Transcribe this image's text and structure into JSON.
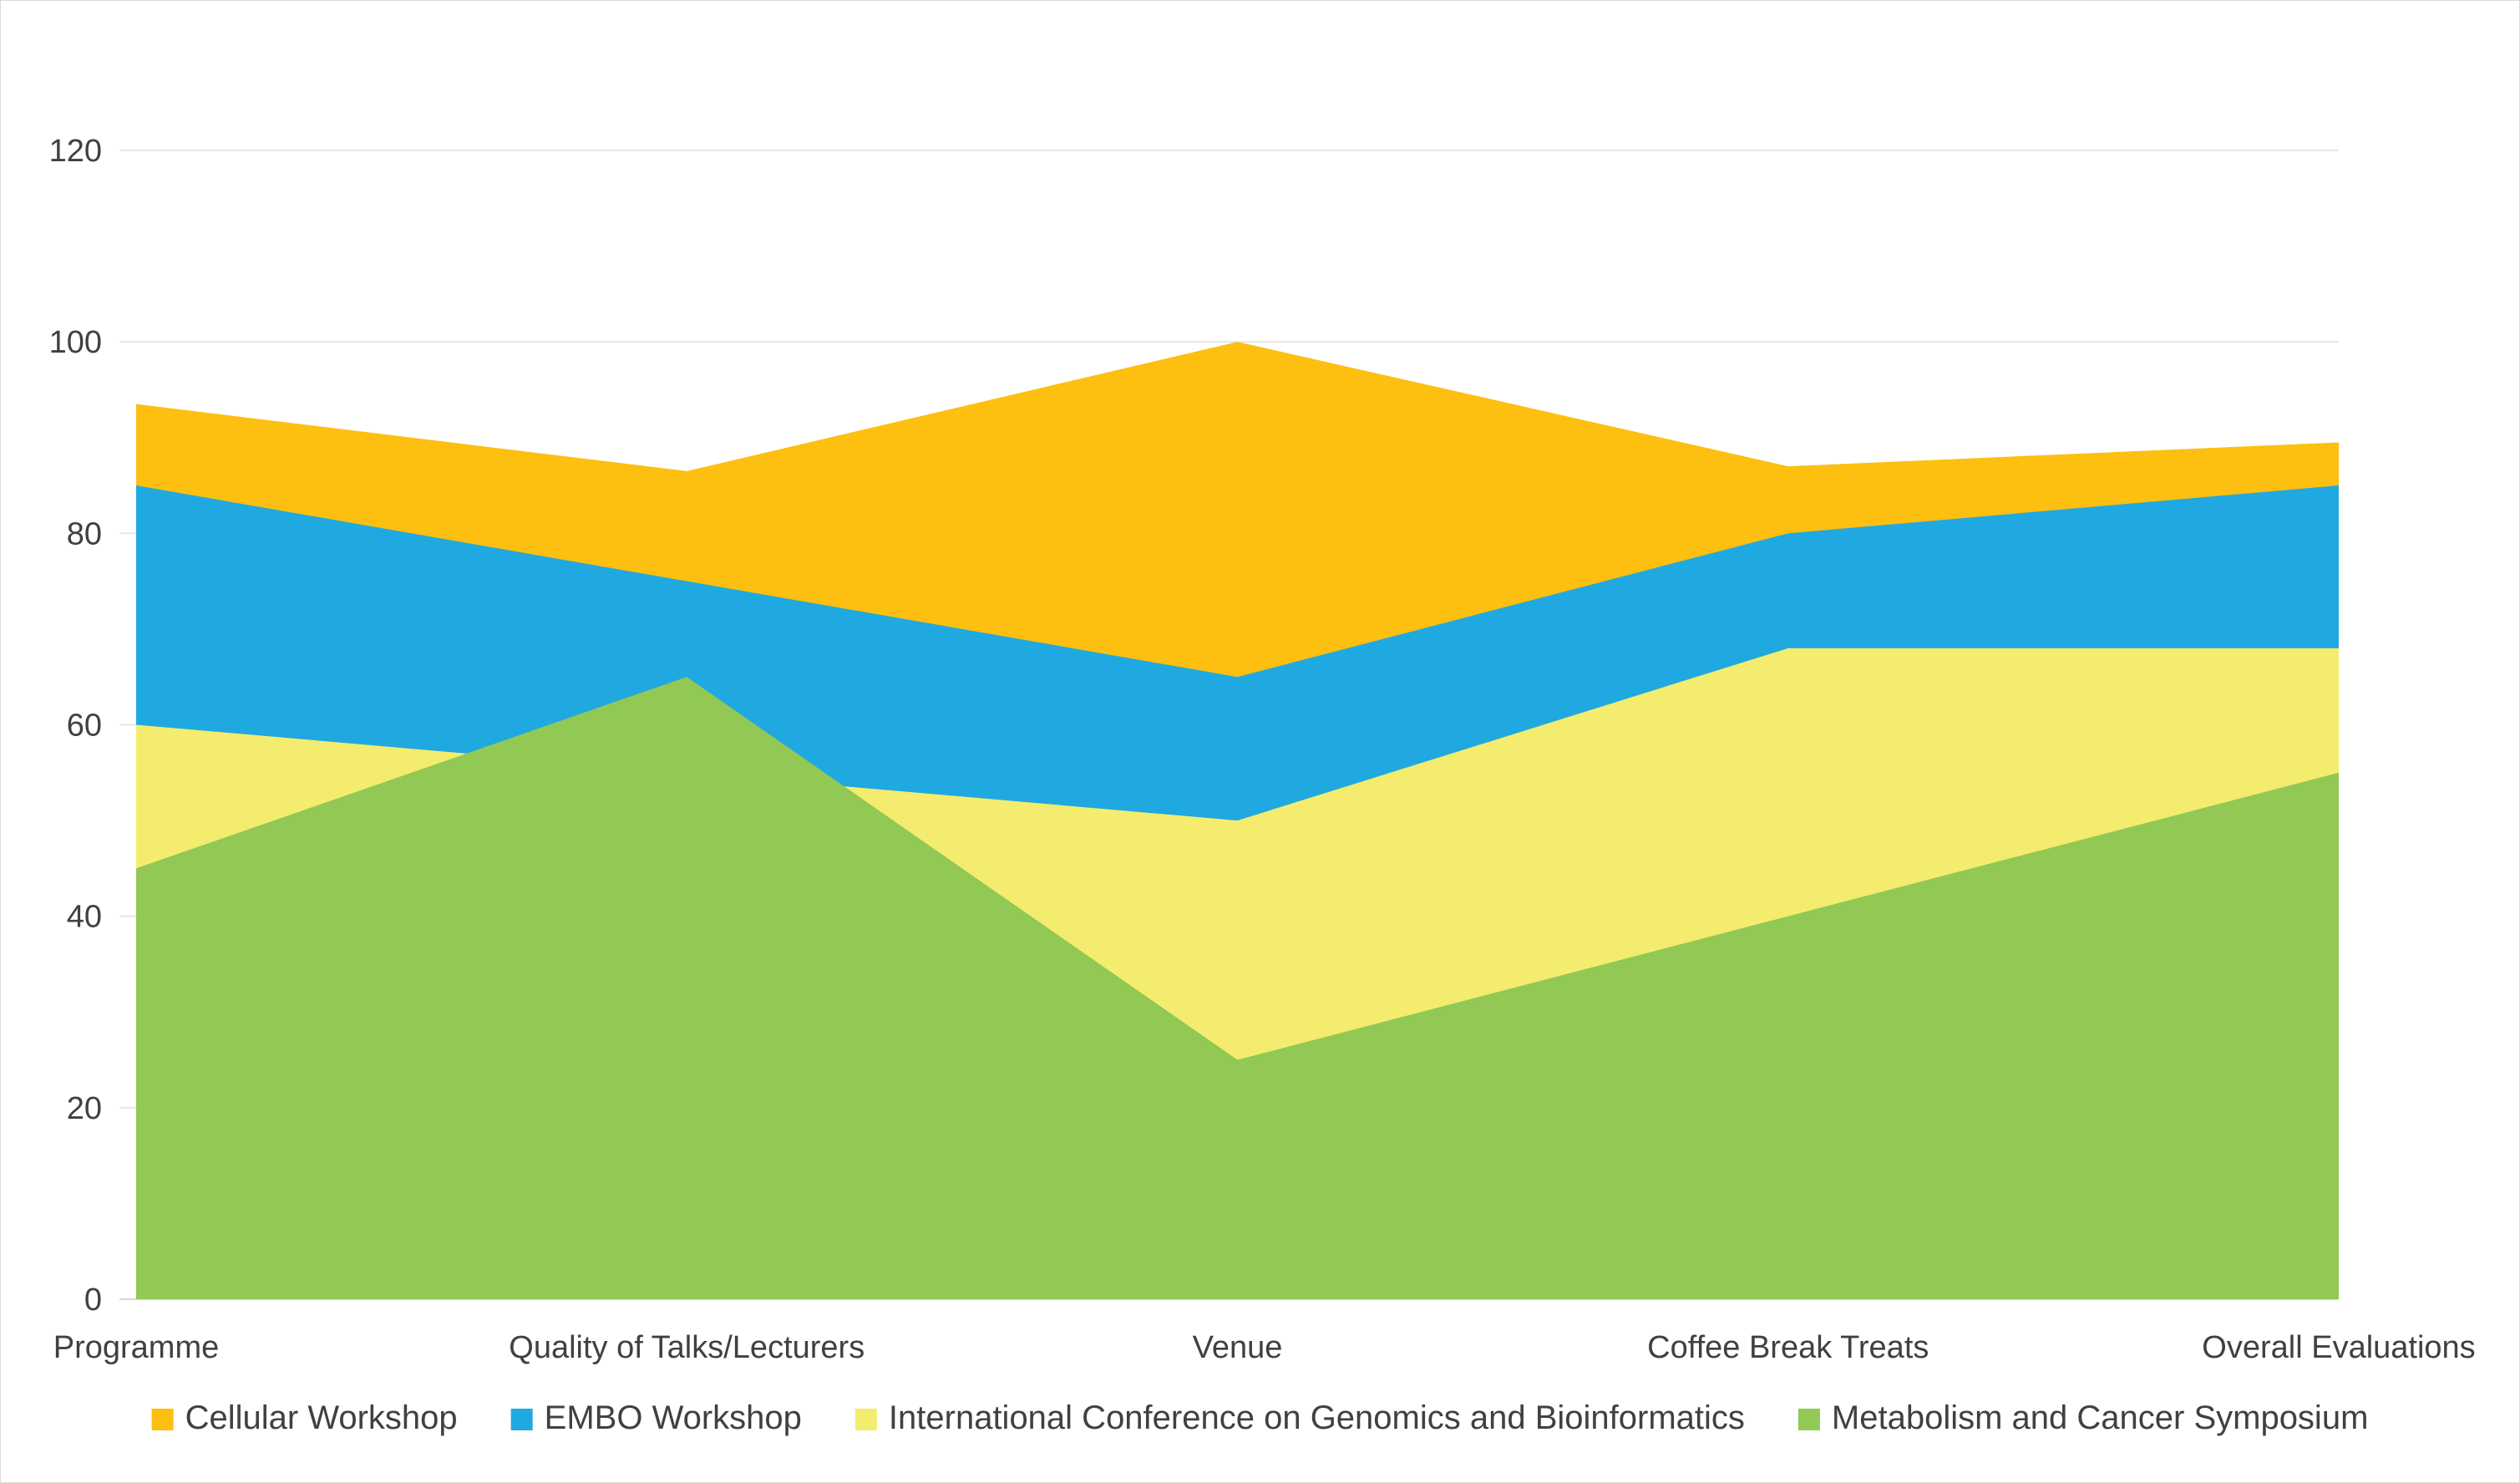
{
  "chart_data": {
    "type": "area",
    "stacked": false,
    "categories": [
      "Programme",
      "Quality of Talks/Lecturers",
      "Venue",
      "Coffee Break Treats",
      "Overall Evaluations"
    ],
    "ylim": [
      0,
      120
    ],
    "yticks": [
      0,
      20,
      40,
      60,
      80,
      100,
      120
    ],
    "grid": true,
    "legend_position": "bottom",
    "series": [
      {
        "name": "Cellular Workshop",
        "color": "#FDBF10",
        "values": [
          93.5,
          86.5,
          100,
          87,
          89.5
        ]
      },
      {
        "name": "EMBO Workshop",
        "color": "#20A9E1",
        "values": [
          85,
          75,
          65,
          80,
          85
        ]
      },
      {
        "name": "International Conference on Genomics and Bioinformatics",
        "color": "#F4EC6E",
        "values": [
          60,
          55,
          50,
          68,
          68
        ]
      },
      {
        "name": "Metabolism and Cancer Symposium",
        "color": "#92C854",
        "values": [
          45,
          65,
          25,
          40,
          55
        ]
      }
    ]
  }
}
